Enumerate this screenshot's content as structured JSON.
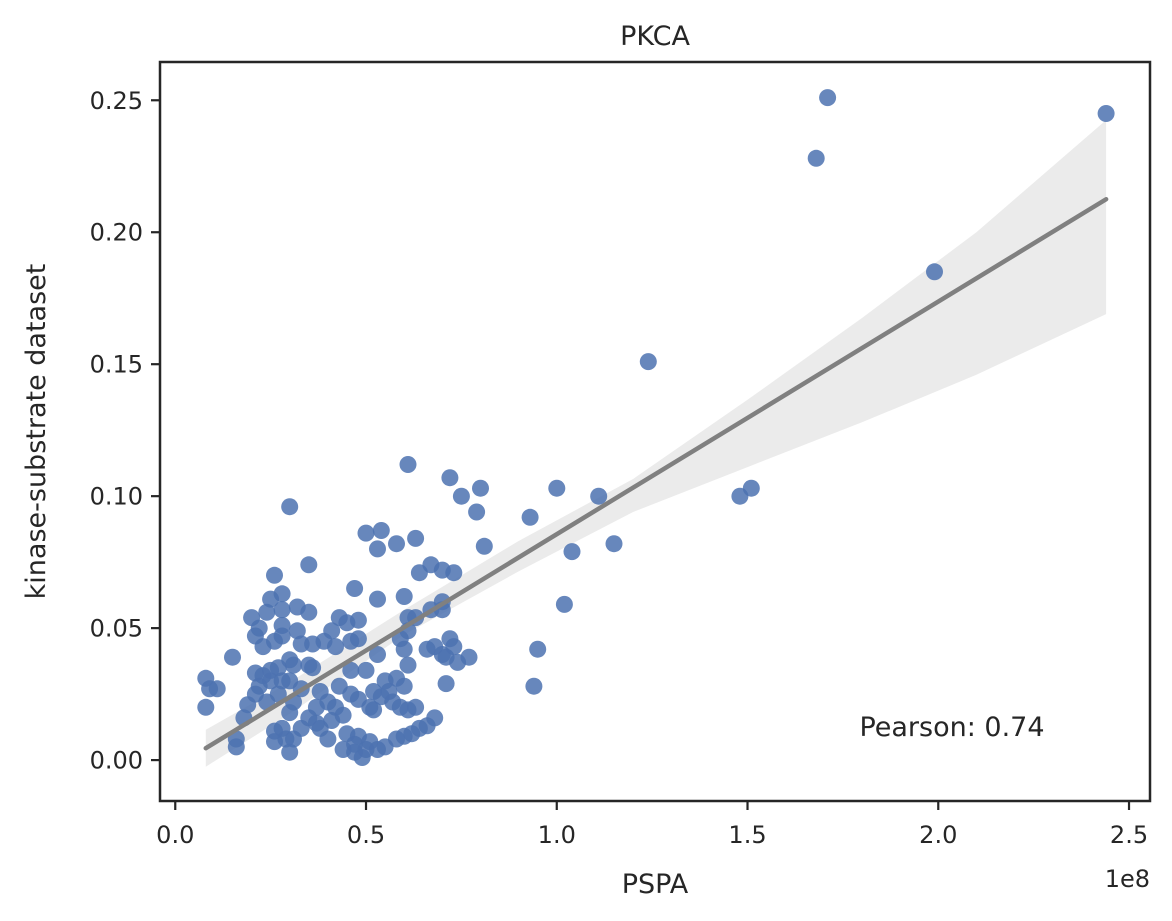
{
  "chart_data": {
    "type": "scatter",
    "title": "PKCA",
    "xlabel": "PSPA",
    "ylabel": "kinase-substrate dataset",
    "x_scale_label": "1e8",
    "xlim": [
      -0.04,
      2.555
    ],
    "ylim": [
      -0.0155,
      0.2645
    ],
    "x_ticks": [
      0.0,
      0.5,
      1.0,
      1.5,
      2.0,
      2.5
    ],
    "x_tick_labels": [
      "0.0",
      "0.5",
      "1.0",
      "1.5",
      "2.0",
      "2.5"
    ],
    "y_ticks": [
      0.0,
      0.05,
      0.1,
      0.15,
      0.2,
      0.25
    ],
    "y_tick_labels": [
      "0.00",
      "0.05",
      "0.10",
      "0.15",
      "0.20",
      "0.25"
    ],
    "grid": false,
    "annotation": "Pearson: 0.74",
    "colors": {
      "points": "#4c72b0",
      "regression_line": "#808080",
      "confidence_band": "#ebebeb",
      "axes": "#262626"
    },
    "regression": {
      "x": [
        0.08,
        2.44
      ],
      "y": [
        0.0045,
        0.2125
      ]
    },
    "confidence_band": {
      "x": [
        0.08,
        0.3,
        0.6,
        0.9,
        1.2,
        1.5,
        1.8,
        2.1,
        2.44
      ],
      "lower": [
        -0.0025,
        0.0175,
        0.0475,
        0.0715,
        0.094,
        0.111,
        0.128,
        0.146,
        0.169
      ],
      "upper": [
        0.0115,
        0.0295,
        0.057,
        0.083,
        0.1065,
        0.1365,
        0.1675,
        0.2,
        0.2425
      ]
    },
    "points": [
      {
        "x": 0.08,
        "y": 0.031
      },
      {
        "x": 0.08,
        "y": 0.02
      },
      {
        "x": 0.09,
        "y": 0.027
      },
      {
        "x": 0.11,
        "y": 0.027
      },
      {
        "x": 0.16,
        "y": 0.008
      },
      {
        "x": 0.16,
        "y": 0.005
      },
      {
        "x": 0.15,
        "y": 0.039
      },
      {
        "x": 0.18,
        "y": 0.016
      },
      {
        "x": 0.19,
        "y": 0.021
      },
      {
        "x": 0.2,
        "y": 0.054
      },
      {
        "x": 0.21,
        "y": 0.047
      },
      {
        "x": 0.21,
        "y": 0.033
      },
      {
        "x": 0.21,
        "y": 0.025
      },
      {
        "x": 0.22,
        "y": 0.05
      },
      {
        "x": 0.22,
        "y": 0.028
      },
      {
        "x": 0.23,
        "y": 0.043
      },
      {
        "x": 0.23,
        "y": 0.032
      },
      {
        "x": 0.24,
        "y": 0.056
      },
      {
        "x": 0.24,
        "y": 0.022
      },
      {
        "x": 0.25,
        "y": 0.061
      },
      {
        "x": 0.25,
        "y": 0.03
      },
      {
        "x": 0.25,
        "y": 0.034
      },
      {
        "x": 0.26,
        "y": 0.07
      },
      {
        "x": 0.26,
        "y": 0.045
      },
      {
        "x": 0.26,
        "y": 0.011
      },
      {
        "x": 0.26,
        "y": 0.007
      },
      {
        "x": 0.27,
        "y": 0.035
      },
      {
        "x": 0.27,
        "y": 0.025
      },
      {
        "x": 0.28,
        "y": 0.063
      },
      {
        "x": 0.28,
        "y": 0.057
      },
      {
        "x": 0.28,
        "y": 0.051
      },
      {
        "x": 0.28,
        "y": 0.047
      },
      {
        "x": 0.28,
        "y": 0.03
      },
      {
        "x": 0.28,
        "y": 0.012
      },
      {
        "x": 0.29,
        "y": 0.008
      },
      {
        "x": 0.3,
        "y": 0.096
      },
      {
        "x": 0.3,
        "y": 0.038
      },
      {
        "x": 0.3,
        "y": 0.03
      },
      {
        "x": 0.3,
        "y": 0.018
      },
      {
        "x": 0.3,
        "y": 0.003
      },
      {
        "x": 0.31,
        "y": 0.036
      },
      {
        "x": 0.31,
        "y": 0.022
      },
      {
        "x": 0.31,
        "y": 0.008
      },
      {
        "x": 0.32,
        "y": 0.058
      },
      {
        "x": 0.32,
        "y": 0.049
      },
      {
        "x": 0.33,
        "y": 0.044
      },
      {
        "x": 0.33,
        "y": 0.027
      },
      {
        "x": 0.33,
        "y": 0.012
      },
      {
        "x": 0.35,
        "y": 0.074
      },
      {
        "x": 0.35,
        "y": 0.056
      },
      {
        "x": 0.35,
        "y": 0.036
      },
      {
        "x": 0.35,
        "y": 0.016
      },
      {
        "x": 0.36,
        "y": 0.044
      },
      {
        "x": 0.36,
        "y": 0.035
      },
      {
        "x": 0.37,
        "y": 0.014
      },
      {
        "x": 0.37,
        "y": 0.02
      },
      {
        "x": 0.38,
        "y": 0.026
      },
      {
        "x": 0.38,
        "y": 0.012
      },
      {
        "x": 0.39,
        "y": 0.045
      },
      {
        "x": 0.4,
        "y": 0.022
      },
      {
        "x": 0.4,
        "y": 0.008
      },
      {
        "x": 0.41,
        "y": 0.049
      },
      {
        "x": 0.41,
        "y": 0.015
      },
      {
        "x": 0.42,
        "y": 0.043
      },
      {
        "x": 0.42,
        "y": 0.02
      },
      {
        "x": 0.43,
        "y": 0.054
      },
      {
        "x": 0.43,
        "y": 0.028
      },
      {
        "x": 0.44,
        "y": 0.004
      },
      {
        "x": 0.44,
        "y": 0.017
      },
      {
        "x": 0.45,
        "y": 0.052
      },
      {
        "x": 0.45,
        "y": 0.01
      },
      {
        "x": 0.46,
        "y": 0.045
      },
      {
        "x": 0.46,
        "y": 0.025
      },
      {
        "x": 0.46,
        "y": 0.034
      },
      {
        "x": 0.47,
        "y": 0.065
      },
      {
        "x": 0.47,
        "y": 0.006
      },
      {
        "x": 0.47,
        "y": 0.003
      },
      {
        "x": 0.48,
        "y": 0.053
      },
      {
        "x": 0.48,
        "y": 0.046
      },
      {
        "x": 0.48,
        "y": 0.023
      },
      {
        "x": 0.48,
        "y": 0.009
      },
      {
        "x": 0.49,
        "y": 0.001
      },
      {
        "x": 0.5,
        "y": 0.086
      },
      {
        "x": 0.5,
        "y": 0.034
      },
      {
        "x": 0.5,
        "y": 0.004
      },
      {
        "x": 0.51,
        "y": 0.02
      },
      {
        "x": 0.51,
        "y": 0.007
      },
      {
        "x": 0.52,
        "y": 0.026
      },
      {
        "x": 0.52,
        "y": 0.019
      },
      {
        "x": 0.53,
        "y": 0.08
      },
      {
        "x": 0.53,
        "y": 0.061
      },
      {
        "x": 0.53,
        "y": 0.04
      },
      {
        "x": 0.53,
        "y": 0.004
      },
      {
        "x": 0.54,
        "y": 0.087
      },
      {
        "x": 0.54,
        "y": 0.024
      },
      {
        "x": 0.55,
        "y": 0.03
      },
      {
        "x": 0.55,
        "y": 0.005
      },
      {
        "x": 0.56,
        "y": 0.026
      },
      {
        "x": 0.57,
        "y": 0.022
      },
      {
        "x": 0.58,
        "y": 0.082
      },
      {
        "x": 0.58,
        "y": 0.031
      },
      {
        "x": 0.58,
        "y": 0.008
      },
      {
        "x": 0.59,
        "y": 0.046
      },
      {
        "x": 0.59,
        "y": 0.02
      },
      {
        "x": 0.6,
        "y": 0.062
      },
      {
        "x": 0.6,
        "y": 0.042
      },
      {
        "x": 0.6,
        "y": 0.028
      },
      {
        "x": 0.6,
        "y": 0.009
      },
      {
        "x": 0.61,
        "y": 0.112
      },
      {
        "x": 0.61,
        "y": 0.054
      },
      {
        "x": 0.61,
        "y": 0.049
      },
      {
        "x": 0.61,
        "y": 0.036
      },
      {
        "x": 0.61,
        "y": 0.019
      },
      {
        "x": 0.62,
        "y": 0.01
      },
      {
        "x": 0.63,
        "y": 0.084
      },
      {
        "x": 0.63,
        "y": 0.054
      },
      {
        "x": 0.63,
        "y": 0.02
      },
      {
        "x": 0.64,
        "y": 0.071
      },
      {
        "x": 0.64,
        "y": 0.012
      },
      {
        "x": 0.66,
        "y": 0.042
      },
      {
        "x": 0.66,
        "y": 0.013
      },
      {
        "x": 0.67,
        "y": 0.074
      },
      {
        "x": 0.67,
        "y": 0.057
      },
      {
        "x": 0.68,
        "y": 0.043
      },
      {
        "x": 0.68,
        "y": 0.016
      },
      {
        "x": 0.7,
        "y": 0.072
      },
      {
        "x": 0.7,
        "y": 0.06
      },
      {
        "x": 0.7,
        "y": 0.057
      },
      {
        "x": 0.7,
        "y": 0.04
      },
      {
        "x": 0.71,
        "y": 0.039
      },
      {
        "x": 0.71,
        "y": 0.029
      },
      {
        "x": 0.72,
        "y": 0.107
      },
      {
        "x": 0.72,
        "y": 0.046
      },
      {
        "x": 0.73,
        "y": 0.071
      },
      {
        "x": 0.73,
        "y": 0.043
      },
      {
        "x": 0.74,
        "y": 0.037
      },
      {
        "x": 0.75,
        "y": 0.1
      },
      {
        "x": 0.77,
        "y": 0.039
      },
      {
        "x": 0.79,
        "y": 0.094
      },
      {
        "x": 0.8,
        "y": 0.103
      },
      {
        "x": 0.81,
        "y": 0.081
      },
      {
        "x": 0.93,
        "y": 0.092
      },
      {
        "x": 0.94,
        "y": 0.028
      },
      {
        "x": 0.95,
        "y": 0.042
      },
      {
        "x": 1.0,
        "y": 0.103
      },
      {
        "x": 1.02,
        "y": 0.059
      },
      {
        "x": 1.04,
        "y": 0.079
      },
      {
        "x": 1.11,
        "y": 0.1
      },
      {
        "x": 1.15,
        "y": 0.082
      },
      {
        "x": 1.24,
        "y": 0.151
      },
      {
        "x": 1.48,
        "y": 0.1
      },
      {
        "x": 1.51,
        "y": 0.103
      },
      {
        "x": 1.68,
        "y": 0.228
      },
      {
        "x": 1.71,
        "y": 0.251
      },
      {
        "x": 1.99,
        "y": 0.185
      },
      {
        "x": 2.44,
        "y": 0.245
      }
    ]
  }
}
